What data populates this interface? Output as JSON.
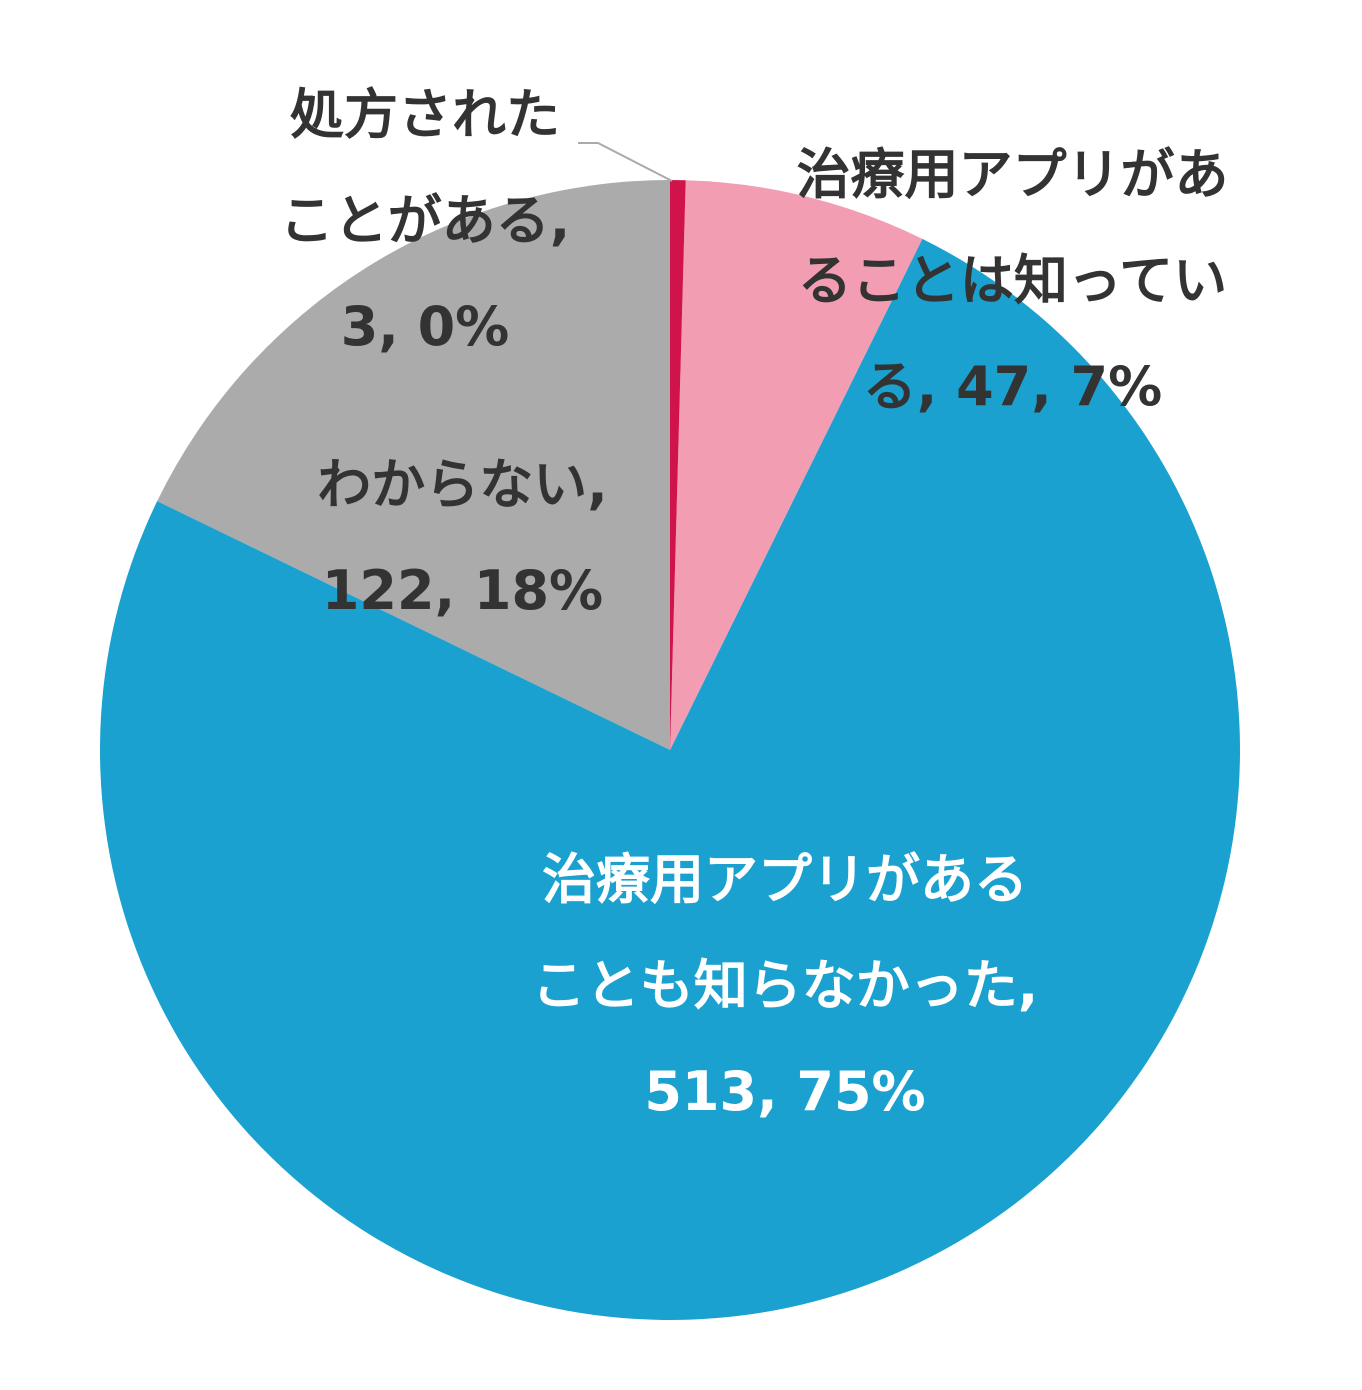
{
  "chart_data": {
    "type": "pie",
    "categories": [
      "処方されたことがある",
      "治療用アプリがあることは知っている",
      "治療用アプリがあることも知らなかった",
      "わからない"
    ],
    "values": [
      3,
      47,
      513,
      122
    ],
    "value_labels": [
      "3, 0%",
      "47, 7%",
      "513, 75%",
      "122, 18%"
    ],
    "label_separator": ", ",
    "colors": [
      "#d0134a",
      "#f29db2",
      "#1aa1cf",
      "#ababab"
    ]
  }
}
